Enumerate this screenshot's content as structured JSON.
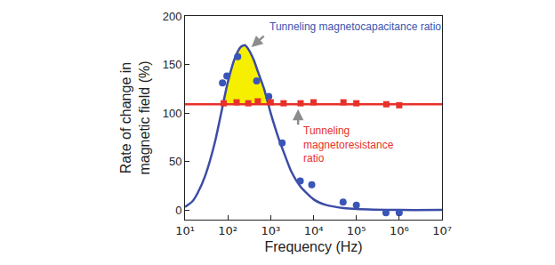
{
  "chart_data": {
    "type": "scatter",
    "x_label": "Frequency (Hz)",
    "y_label": "Rate of change in\nmagnetic field (%)",
    "log": "x",
    "xlim": [
      10,
      10000000
    ],
    "ylim": [
      -10,
      200
    ],
    "xticks": [
      {
        "value": 10,
        "label": "10¹"
      },
      {
        "value": 100,
        "label": "10²"
      },
      {
        "value": 1000,
        "label": "10³"
      },
      {
        "value": 10000,
        "label": "10⁴"
      },
      {
        "value": 100000,
        "label": "10⁵"
      },
      {
        "value": 1000000,
        "label": "10⁶"
      },
      {
        "value": 10000000,
        "label": "10⁷"
      }
    ],
    "yticks": [
      0,
      50,
      100,
      150,
      200
    ],
    "grid": false,
    "series": [
      {
        "name": "Tunneling magnetocapacitance ratio",
        "type": "line",
        "color": "#3b4ca6",
        "x": [
          10,
          15,
          20,
          30,
          50,
          70,
          100,
          150,
          200,
          250,
          300,
          400,
          500,
          700,
          1000,
          1500,
          2000,
          3000,
          5000,
          10000,
          20000,
          50000,
          100000,
          1000000,
          10000000
        ],
        "values": [
          3,
          9,
          18,
          36,
          70,
          100,
          132,
          158,
          168,
          170,
          166,
          155,
          143,
          125,
          100,
          75,
          60,
          40,
          24,
          11,
          5,
          2,
          1,
          0,
          0
        ]
      },
      {
        "name": "Tunneling magnetocapacitance ratio",
        "type": "scatter",
        "marker": "circle",
        "color": "#3a55b8",
        "x": [
          75,
          95,
          170,
          470,
          900,
          1850,
          4900,
          9100,
          49000,
          100000,
          490000,
          1000000
        ],
        "values": [
          131,
          138,
          158,
          133,
          117,
          69,
          30,
          26,
          8,
          5,
          -3,
          -3
        ]
      },
      {
        "name": "Tunneling magnetoresistance ratio",
        "type": "scatter",
        "marker": "square",
        "color": "#e8302a",
        "x": [
          80,
          160,
          300,
          500,
          1000,
          2000,
          5000,
          10000,
          50000,
          100000,
          500000,
          1000000
        ],
        "values": [
          110,
          111,
          110,
          112,
          111,
          110,
          110,
          111,
          111,
          110,
          109,
          108
        ]
      },
      {
        "name": "Tunneling magnetoresistance ratio",
        "type": "line",
        "color": "#e8302a",
        "x": [
          10,
          10000000
        ],
        "values": [
          109,
          109
        ]
      }
    ],
    "annotations": [
      {
        "text": "Tunneling magnetocapacitance ratio",
        "color": "#3b55b0"
      },
      {
        "text": "Tunneling\nmagnetoresistance\nratio",
        "color": "#e8302a"
      }
    ]
  }
}
